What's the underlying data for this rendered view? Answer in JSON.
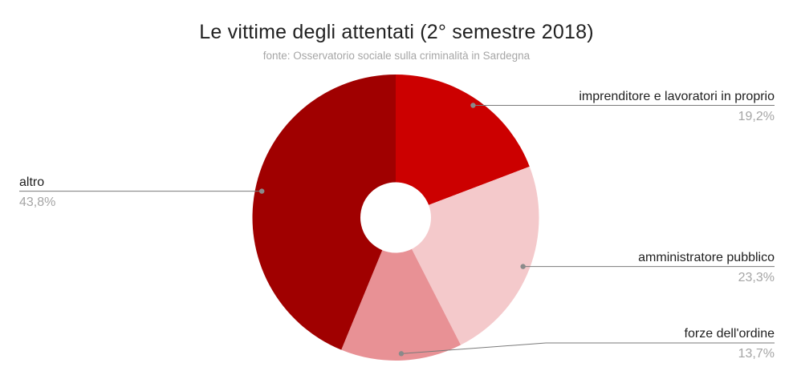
{
  "chart_data": {
    "type": "pie",
    "variant": "donut",
    "title": "Le vittime degli attentati (2° semestre 2018)",
    "subtitle": "fonte: Osservatorio sociale sulla criminalità in Sardegna",
    "start_angle_deg": 0,
    "direction": "clockwise",
    "hole_radius_ratio": 0.25,
    "legend_position": "outside-callout-labels",
    "total": 100,
    "slices": [
      {
        "key": "imprenditore",
        "label": "imprenditore e lavoratori in proprio",
        "value": 19.2,
        "display": "19,2%",
        "color": "#cc0000"
      },
      {
        "key": "amministratore",
        "label": "amministratore pubblico",
        "value": 23.3,
        "display": "23,3%",
        "color": "#f4c9cb"
      },
      {
        "key": "forze-ordine",
        "label": "forze dell'ordine",
        "value": 13.7,
        "display": "13,7%",
        "color": "#e89195"
      },
      {
        "key": "altro",
        "label": "altro",
        "value": 43.8,
        "display": "43,8%",
        "color": "#a00000"
      }
    ]
  },
  "theme": {
    "background": "#ffffff",
    "title_color": "#212121",
    "subtitle_color": "#a6a6a6",
    "label_color": "#1f1f1f",
    "percent_color": "#a5a5a5",
    "line_color": "#7a7a7a",
    "dot_color": "#8a8a8a"
  }
}
